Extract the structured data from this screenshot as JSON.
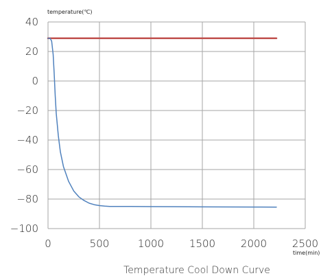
{
  "chart_data": {
    "type": "line",
    "title": "Temperature Cool Down Curve",
    "xlabel": "time(min)",
    "ylabel": "temperature(℃)",
    "xlim": [
      0,
      2500
    ],
    "ylim": [
      -100,
      40
    ],
    "x_ticks": [
      0,
      500,
      1000,
      1500,
      2000,
      2500
    ],
    "x_tick_labels": [
      "0",
      "500",
      "1000",
      "1500",
      "2000",
      "2500"
    ],
    "y_ticks": [
      40,
      20,
      0,
      -20,
      -40,
      -60,
      -80,
      -100
    ],
    "y_tick_labels": [
      "40",
      "20",
      "0",
      "−20",
      "−40",
      "−60",
      "−80",
      "−100"
    ],
    "grid": true,
    "legend": "none",
    "series": [
      {
        "color": "#c0504d",
        "x": [
          0,
          100,
          200,
          400,
          600,
          800,
          1000,
          1200,
          1400,
          1600,
          1800,
          2000,
          2220
        ],
        "y": [
          29,
          29,
          29,
          29,
          29,
          29,
          29,
          29,
          29,
          29,
          29,
          29,
          29
        ]
      },
      {
        "color": "#4f81bd",
        "x": [
          0,
          20,
          35,
          50,
          60,
          70,
          80,
          100,
          120,
          150,
          200,
          250,
          300,
          350,
          400,
          450,
          500,
          550,
          600,
          800,
          1000,
          1500,
          2000,
          2220
        ],
        "y": [
          29,
          29,
          27,
          18,
          5,
          -10,
          -22,
          -37,
          -48,
          -58,
          -68,
          -74.5,
          -78.5,
          -81,
          -82.8,
          -83.8,
          -84.4,
          -84.8,
          -85,
          -85,
          -85.1,
          -85.3,
          -85.4,
          -85.5
        ]
      }
    ]
  }
}
